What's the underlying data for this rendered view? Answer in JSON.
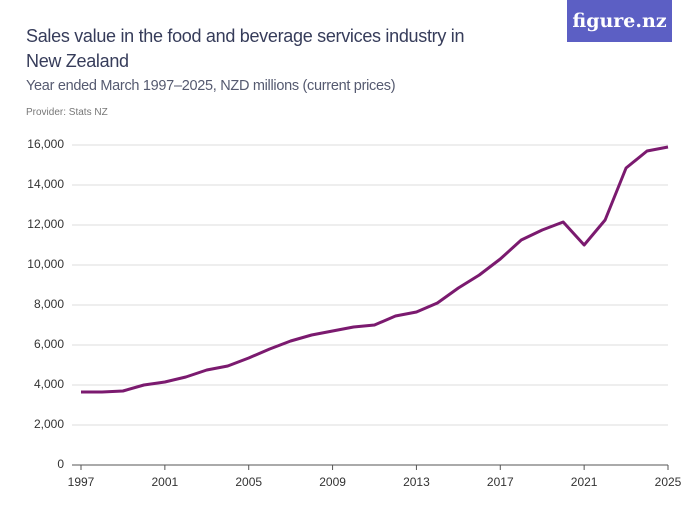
{
  "logo": "figure.nz",
  "chart_data": {
    "type": "line",
    "title": "Sales value in the food and beverage services industry in New Zealand",
    "subtitle": "Year ended March 1997–2025, NZD millions (current prices)",
    "provider": "Provider: Stats NZ",
    "x": [
      1997,
      1998,
      1999,
      2000,
      2001,
      2002,
      2003,
      2004,
      2005,
      2006,
      2007,
      2008,
      2009,
      2010,
      2011,
      2012,
      2013,
      2014,
      2015,
      2016,
      2017,
      2018,
      2019,
      2020,
      2021,
      2022,
      2023,
      2024,
      2025
    ],
    "series": [
      {
        "name": "Sales value",
        "color": "#7b1a6f",
        "values": [
          3650,
          3650,
          3700,
          4000,
          4150,
          4400,
          4750,
          4950,
          5350,
          5800,
          6200,
          6500,
          6700,
          6900,
          7000,
          7450,
          7650,
          8100,
          8850,
          9500,
          10300,
          11250,
          11750,
          12150,
          11000,
          12250,
          14850,
          15700,
          15900
        ]
      }
    ],
    "xlim": [
      1997,
      2025
    ],
    "xticks": [
      1997,
      2001,
      2005,
      2009,
      2013,
      2017,
      2021,
      2025
    ],
    "ylim": [
      0,
      16000
    ],
    "yticks": [
      0,
      {
        "value": 2000,
        "label": "2,000"
      },
      {
        "value": 4000,
        "label": "4,000"
      },
      {
        "value": 6000,
        "label": "6,000"
      },
      {
        "value": 8000,
        "label": "8,000"
      },
      {
        "value": 10000,
        "label": "10,000"
      },
      {
        "value": 12000,
        "label": "12,000"
      },
      {
        "value": 14000,
        "label": "14,000"
      },
      {
        "value": 16000,
        "label": "16,000"
      }
    ],
    "grid": true
  }
}
